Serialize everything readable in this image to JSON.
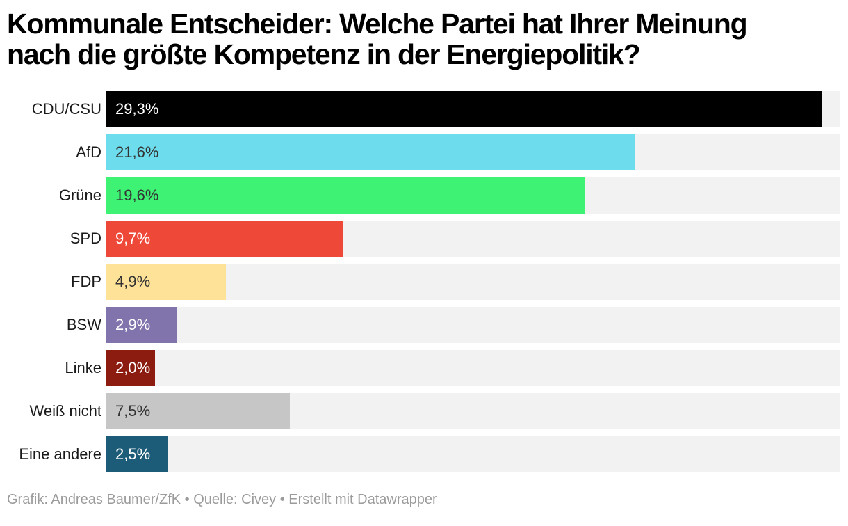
{
  "title": {
    "text": "Kommunale Entscheider: Welche Partei hat Ihrer Meinung nach die größte Kompetenz in der Energiepolitik?",
    "line1": "Kommunale Entscheider: Welche Partei hat Ihrer Meinung",
    "line2": "nach die größte Kompetenz in der Energiepolitik?"
  },
  "chart_data": {
    "type": "bar",
    "orientation": "horizontal",
    "title": "Kommunale Entscheider: Welche Partei hat Ihrer Meinung nach die größte Kompetenz in der Energiepolitik?",
    "categories": [
      "CDU/CSU",
      "AfD",
      "Grüne",
      "SPD",
      "FDP",
      "BSW",
      "Linke",
      "Weiß nicht",
      "Eine andere"
    ],
    "values": [
      29.3,
      21.6,
      19.6,
      9.7,
      4.9,
      2.9,
      2.0,
      7.5,
      2.5
    ],
    "value_labels": [
      "29,3%",
      "21,6%",
      "19,6%",
      "9,7%",
      "4,9%",
      "2,9%",
      "2,0%",
      "7,5%",
      "2,5%"
    ],
    "bar_colors": [
      "#000000",
      "#6DDCEC",
      "#3EF274",
      "#EE4839",
      "#FDE298",
      "#8173AB",
      "#8C1B10",
      "#C6C6C6",
      "#1D5C78"
    ],
    "value_text_colors": [
      "#ffffff",
      "#333333",
      "#333333",
      "#ffffff",
      "#333333",
      "#ffffff",
      "#ffffff",
      "#333333",
      "#ffffff"
    ],
    "xlim": [
      0,
      30
    ],
    "track_color": "#F2F2F2",
    "grid": false,
    "legend": "none",
    "unit": "%"
  },
  "footer": {
    "text": "Grafik: Andreas Baumer/ZfK • Quelle: Civey • Erstellt mit Datawrapper"
  }
}
